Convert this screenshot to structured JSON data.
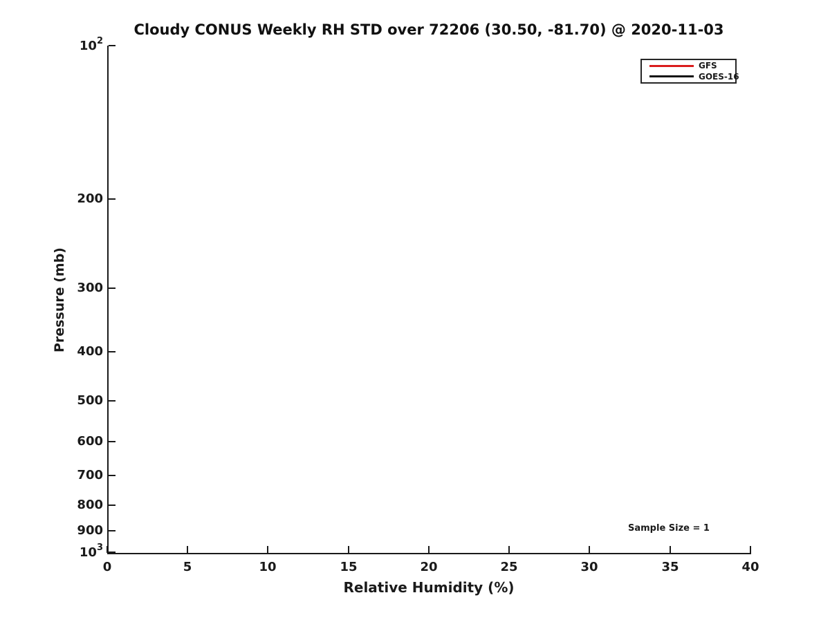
{
  "title": "Cloudy CONUS Weekly RH STD over 72206 (30.50, -81.70) @ 2020-11-03",
  "axes": {
    "xlabel": "Relative Humidity (%)",
    "ylabel": "Pressure (mb)",
    "x_tick_labels": [
      "0",
      "5",
      "10",
      "15",
      "20",
      "25",
      "30",
      "35",
      "40"
    ],
    "y_tick_top": {
      "base": "10",
      "exp": "2"
    },
    "y_tick_labels_mid": [
      "200",
      "300",
      "400",
      "500",
      "600",
      "700",
      "800",
      "900"
    ],
    "y_tick_bottom": {
      "base": "10",
      "exp": "3"
    }
  },
  "legend": {
    "items": [
      {
        "label": "GFS",
        "color": "#d91c1c"
      },
      {
        "label": "GOES-16",
        "color": "#111111"
      }
    ]
  },
  "annotation": {
    "sample_size": "Sample Size = 1"
  },
  "colors": {
    "axis": "#1a1a1a",
    "background": "#ffffff"
  },
  "chart_data": {
    "type": "line",
    "title": "Cloudy CONUS Weekly RH STD over 72206 (30.50, -81.70) @ 2020-11-03",
    "xlabel": "Relative Humidity (%)",
    "ylabel": "Pressure (mb)",
    "xlim": [
      0,
      40
    ],
    "ylim": [
      1000,
      100
    ],
    "yscale": "log",
    "y_axis_inverted": true,
    "xticks": [
      0,
      5,
      10,
      15,
      20,
      25,
      30,
      35,
      40
    ],
    "yticks": [
      100,
      200,
      300,
      400,
      500,
      600,
      700,
      800,
      900,
      1000
    ],
    "grid": false,
    "legend_position": "top-right",
    "series": [
      {
        "name": "GFS",
        "color": "#d91c1c",
        "x": [],
        "y": []
      },
      {
        "name": "GOES-16",
        "color": "#111111",
        "x": [],
        "y": []
      }
    ],
    "annotations": [
      {
        "text": "Sample Size = 1",
        "x": 35,
        "y": 890
      }
    ]
  }
}
